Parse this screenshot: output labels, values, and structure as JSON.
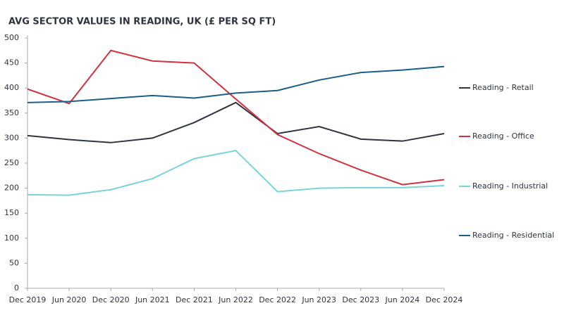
{
  "chart_data": {
    "type": "line",
    "title": "AVG SECTOR VALUES IN READING, UK (£ PER SQ FT)",
    "categories": [
      "Dec 2019",
      "Jun 2020",
      "Dec 2020",
      "Jun 2021",
      "Dec 2021",
      "Jun 2022",
      "Dec 2022",
      "Jun 2023",
      "Dec 2023",
      "Jun 2024",
      "Dec 2024"
    ],
    "series": [
      {
        "name": "Reading - Retail",
        "color": "#2e3440",
        "values": [
          305,
          297,
          291,
          300,
          331,
          371,
          309,
          323,
          298,
          294,
          309
        ]
      },
      {
        "name": "Reading - Office",
        "color": "#d0323f",
        "values": [
          398,
          369,
          475,
          454,
          450,
          378,
          307,
          269,
          236,
          207,
          217
        ]
      },
      {
        "name": "Reading - Industrial",
        "color": "#7ad3d8",
        "values": [
          187,
          186,
          197,
          219,
          259,
          275,
          193,
          200,
          201,
          201,
          205
        ]
      },
      {
        "name": "Reading - Residential",
        "color": "#1a5f88",
        "values": [
          371,
          373,
          379,
          385,
          380,
          390,
          395,
          416,
          431,
          436,
          443
        ]
      }
    ],
    "ylim": [
      0,
      500
    ],
    "yticks": [
      0,
      50,
      100,
      150,
      200,
      250,
      300,
      350,
      400,
      450,
      500
    ],
    "grid": false,
    "legend": "right"
  }
}
